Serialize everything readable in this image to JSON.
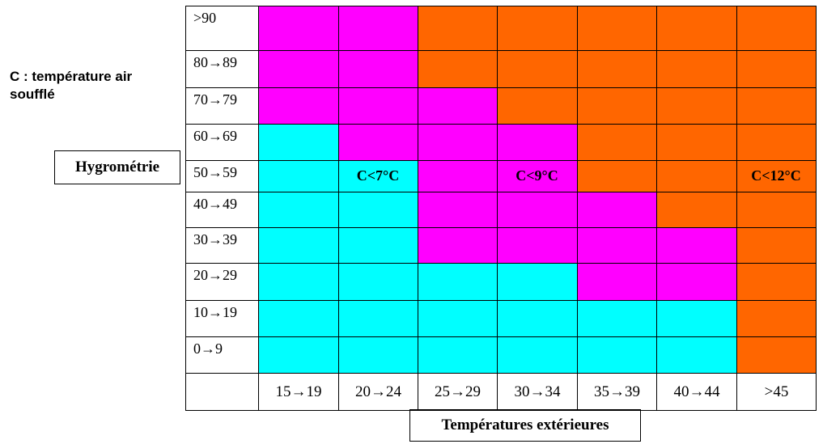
{
  "note": "C : température air soufflé",
  "y_axis_label": "Hygrométrie",
  "x_axis_label": "Températures extérieures",
  "rows": [
    ">90",
    "80→89",
    "70→79",
    "60→69",
    "50→59",
    "40→49",
    "30→39",
    "20→29",
    "10→19",
    "0→9"
  ],
  "columns": [
    "15→19",
    "20→24",
    "25→29",
    "30→34",
    "35→39",
    "40→44",
    ">45"
  ],
  "zones": [
    "C<7°C",
    "C<9°C",
    "C<12°C"
  ]
}
